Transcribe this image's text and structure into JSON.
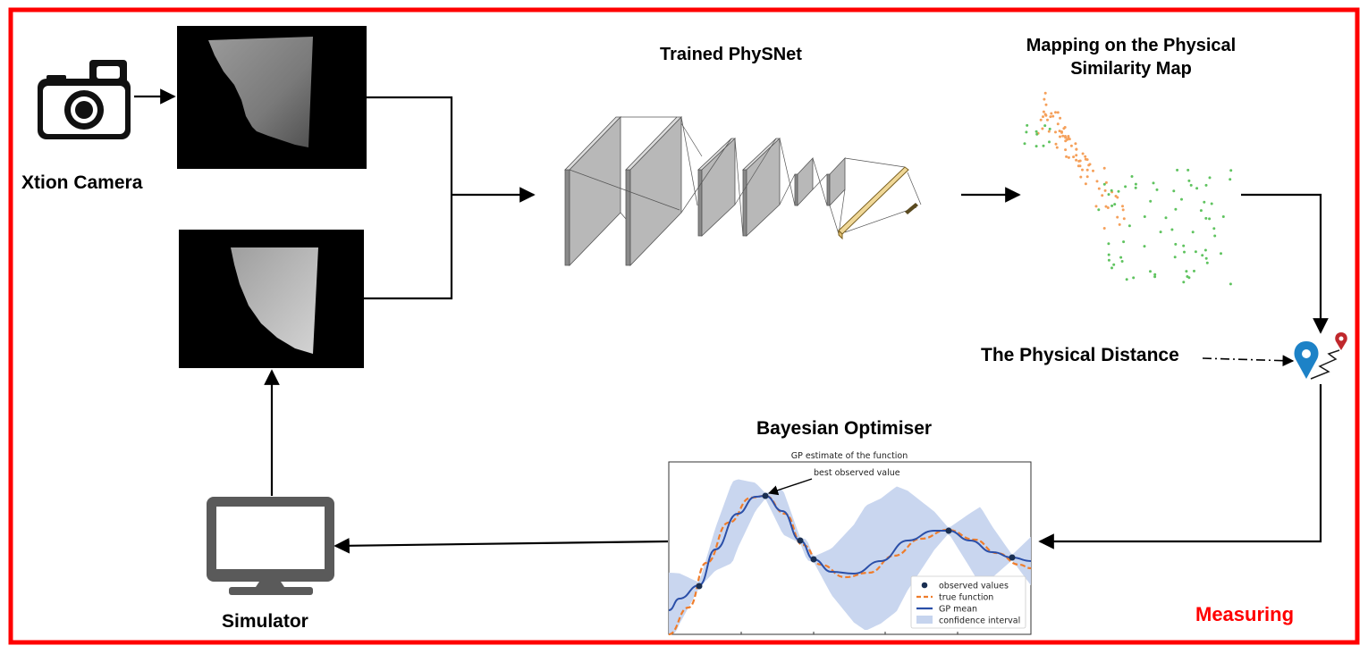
{
  "labels": {
    "camera": "Xtion Camera",
    "physnet": "Trained PhySNet",
    "mapping": "Mapping on the Physical Similarity Map",
    "distance": "The Physical Distance",
    "bayes": "Bayesian Optimiser",
    "simulator": "Simulator",
    "measuring": "Measuring"
  },
  "gp_plot": {
    "title": "GP estimate of the function",
    "annotation": "best observed value",
    "legend": [
      "observed values",
      "true function",
      "GP mean",
      "confidence interval"
    ]
  },
  "colors": {
    "frame": "#ff0000",
    "orange_points": "#f5a05a",
    "green_points": "#5fc35f",
    "gp_mean": "#2b4fa8",
    "true_fn": "#ef7d2c",
    "confidence": "#c6d4ee",
    "layers": "#b7b7b7",
    "icon_grey": "#5a5a5a",
    "pin_blue": "#1d82c7",
    "pin_red": "#c0282c"
  },
  "icons": [
    "camera-icon",
    "monitor-icon",
    "location-pin-icon"
  ]
}
